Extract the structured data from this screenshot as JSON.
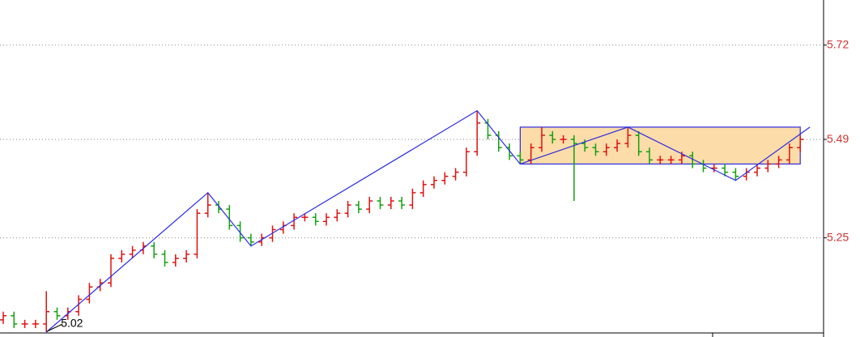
{
  "chart_data": {
    "type": "ohlc",
    "ylim": [
      5.02,
      5.83
    ],
    "yticks": [
      5.25,
      5.49,
      5.72
    ],
    "grid": true,
    "up_color": "#e01010",
    "down_color": "#10a010",
    "tick_color": "#d03030",
    "series": {
      "open": [
        5.05,
        5.06,
        5.04,
        5.04,
        5.04,
        5.07,
        5.06,
        5.07,
        5.1,
        5.13,
        5.14,
        5.2,
        5.21,
        5.22,
        5.23,
        5.21,
        5.19,
        5.2,
        5.21,
        5.31,
        5.33,
        5.32,
        5.28,
        5.25,
        5.24,
        5.25,
        5.27,
        5.28,
        5.3,
        5.3,
        5.29,
        5.3,
        5.31,
        5.33,
        5.32,
        5.34,
        5.33,
        5.34,
        5.33,
        5.36,
        5.38,
        5.39,
        5.4,
        5.41,
        5.46,
        5.53,
        5.5,
        5.47,
        5.45,
        5.44,
        5.47,
        5.5,
        5.49,
        5.49,
        5.48,
        5.47,
        5.46,
        5.47,
        5.48,
        5.5,
        5.46,
        5.44,
        5.44,
        5.44,
        5.45,
        5.43,
        5.42,
        5.42,
        5.41,
        5.4,
        5.41,
        5.42,
        5.43,
        5.44,
        5.47
      ],
      "high": [
        5.07,
        5.07,
        5.05,
        5.05,
        5.12,
        5.08,
        5.08,
        5.11,
        5.14,
        5.15,
        5.21,
        5.22,
        5.23,
        5.24,
        5.24,
        5.22,
        5.21,
        5.22,
        5.32,
        5.36,
        5.34,
        5.33,
        5.29,
        5.26,
        5.26,
        5.28,
        5.29,
        5.31,
        5.31,
        5.31,
        5.31,
        5.32,
        5.34,
        5.34,
        5.35,
        5.35,
        5.35,
        5.35,
        5.37,
        5.39,
        5.4,
        5.41,
        5.42,
        5.47,
        5.56,
        5.54,
        5.51,
        5.48,
        5.46,
        5.48,
        5.52,
        5.51,
        5.5,
        5.5,
        5.49,
        5.48,
        5.48,
        5.49,
        5.52,
        5.51,
        5.47,
        5.45,
        5.45,
        5.46,
        5.46,
        5.44,
        5.43,
        5.43,
        5.42,
        5.42,
        5.43,
        5.44,
        5.45,
        5.48,
        5.5
      ],
      "low": [
        5.04,
        5.03,
        5.03,
        5.03,
        5.02,
        5.05,
        5.05,
        5.06,
        5.09,
        5.12,
        5.13,
        5.19,
        5.2,
        5.21,
        5.2,
        5.18,
        5.18,
        5.19,
        5.2,
        5.3,
        5.31,
        5.27,
        5.24,
        5.23,
        5.23,
        5.24,
        5.26,
        5.27,
        5.29,
        5.28,
        5.28,
        5.29,
        5.3,
        5.31,
        5.31,
        5.32,
        5.32,
        5.32,
        5.32,
        5.35,
        5.37,
        5.38,
        5.39,
        5.4,
        5.45,
        5.49,
        5.46,
        5.44,
        5.43,
        5.43,
        5.46,
        5.48,
        5.48,
        5.34,
        5.46,
        5.45,
        5.45,
        5.46,
        5.47,
        5.45,
        5.43,
        5.43,
        5.43,
        5.43,
        5.42,
        5.41,
        5.41,
        5.4,
        5.39,
        5.39,
        5.4,
        5.41,
        5.42,
        5.43,
        5.46
      ],
      "close": [
        5.06,
        5.04,
        5.04,
        5.04,
        5.07,
        5.06,
        5.07,
        5.1,
        5.13,
        5.14,
        5.2,
        5.21,
        5.22,
        5.23,
        5.21,
        5.19,
        5.2,
        5.21,
        5.31,
        5.33,
        5.32,
        5.28,
        5.25,
        5.24,
        5.25,
        5.27,
        5.28,
        5.3,
        5.3,
        5.29,
        5.3,
        5.31,
        5.33,
        5.32,
        5.34,
        5.33,
        5.34,
        5.33,
        5.36,
        5.38,
        5.39,
        5.4,
        5.41,
        5.46,
        5.53,
        5.5,
        5.47,
        5.45,
        5.44,
        5.47,
        5.5,
        5.49,
        5.49,
        5.48,
        5.47,
        5.46,
        5.47,
        5.48,
        5.5,
        5.46,
        5.44,
        5.44,
        5.44,
        5.45,
        5.43,
        5.42,
        5.42,
        5.41,
        5.4,
        5.41,
        5.42,
        5.43,
        5.44,
        5.47,
        5.49
      ]
    },
    "zigzag": {
      "color": "#2b2be0",
      "x": [
        4,
        19,
        23,
        44,
        48,
        58,
        68,
        74.9
      ],
      "y": [
        5.02,
        5.36,
        5.23,
        5.56,
        5.43,
        5.52,
        5.39,
        5.52
      ]
    },
    "box": {
      "color": "#2b2be0",
      "fill": "#fcdca8",
      "xlim": [
        48,
        74
      ],
      "ylim": [
        5.43,
        5.52
      ]
    },
    "annotation": {
      "x": 4,
      "value": 5.02
    }
  }
}
